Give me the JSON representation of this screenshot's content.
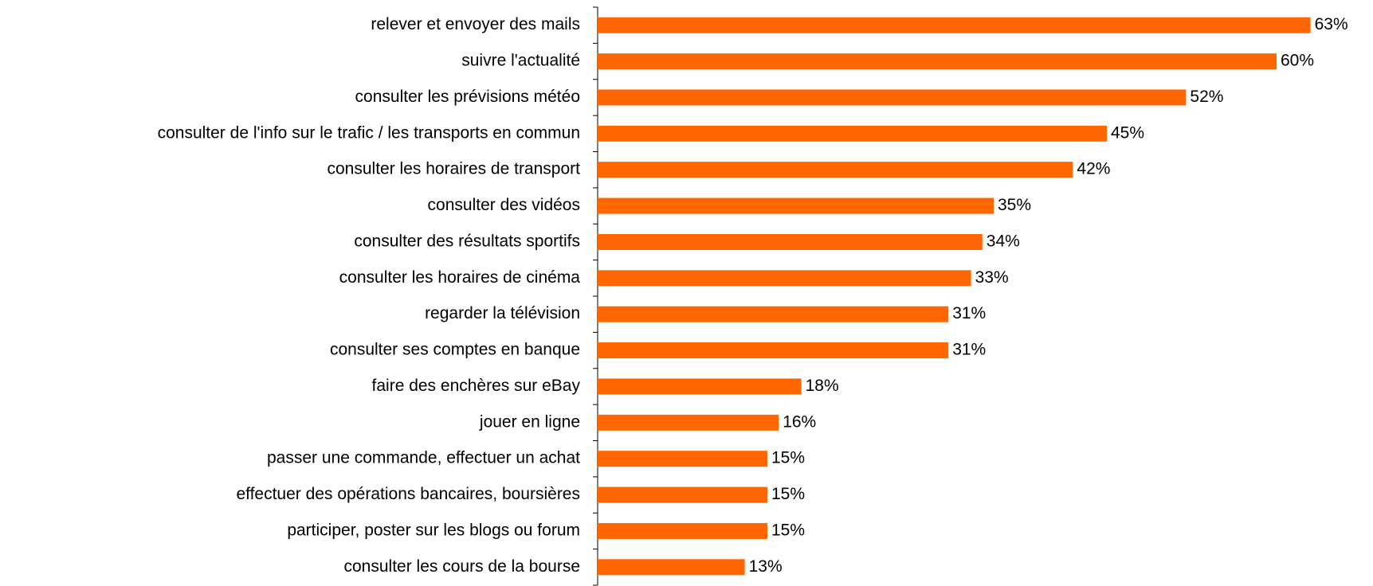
{
  "chart_data": {
    "type": "barh",
    "categories": [
      "relever et envoyer des mails",
      "suivre l'actualité",
      "consulter les prévisions météo",
      "consulter de l'info sur le trafic / les transports en commun",
      "consulter les horaires de transport",
      "consulter des vidéos",
      "consulter des résultats sportifs",
      "consulter les horaires de cinéma",
      "regarder la télévision",
      "consulter ses comptes en banque",
      "faire des enchères sur eBay",
      "jouer en ligne",
      "passer une commande, effectuer un achat",
      "effectuer des opérations bancaires, boursières",
      "participer, poster sur les blogs ou forum",
      "consulter les cours de la bourse"
    ],
    "values": [
      63,
      60,
      52,
      45,
      42,
      35,
      34,
      33,
      31,
      31,
      18,
      16,
      15,
      15,
      15,
      13
    ],
    "value_labels": [
      "63%",
      "60%",
      "52%",
      "45%",
      "42%",
      "35%",
      "34%",
      "33%",
      "31%",
      "31%",
      "18%",
      "16%",
      "15%",
      "15%",
      "15%",
      "13%"
    ],
    "color": "#ff6600"
  }
}
